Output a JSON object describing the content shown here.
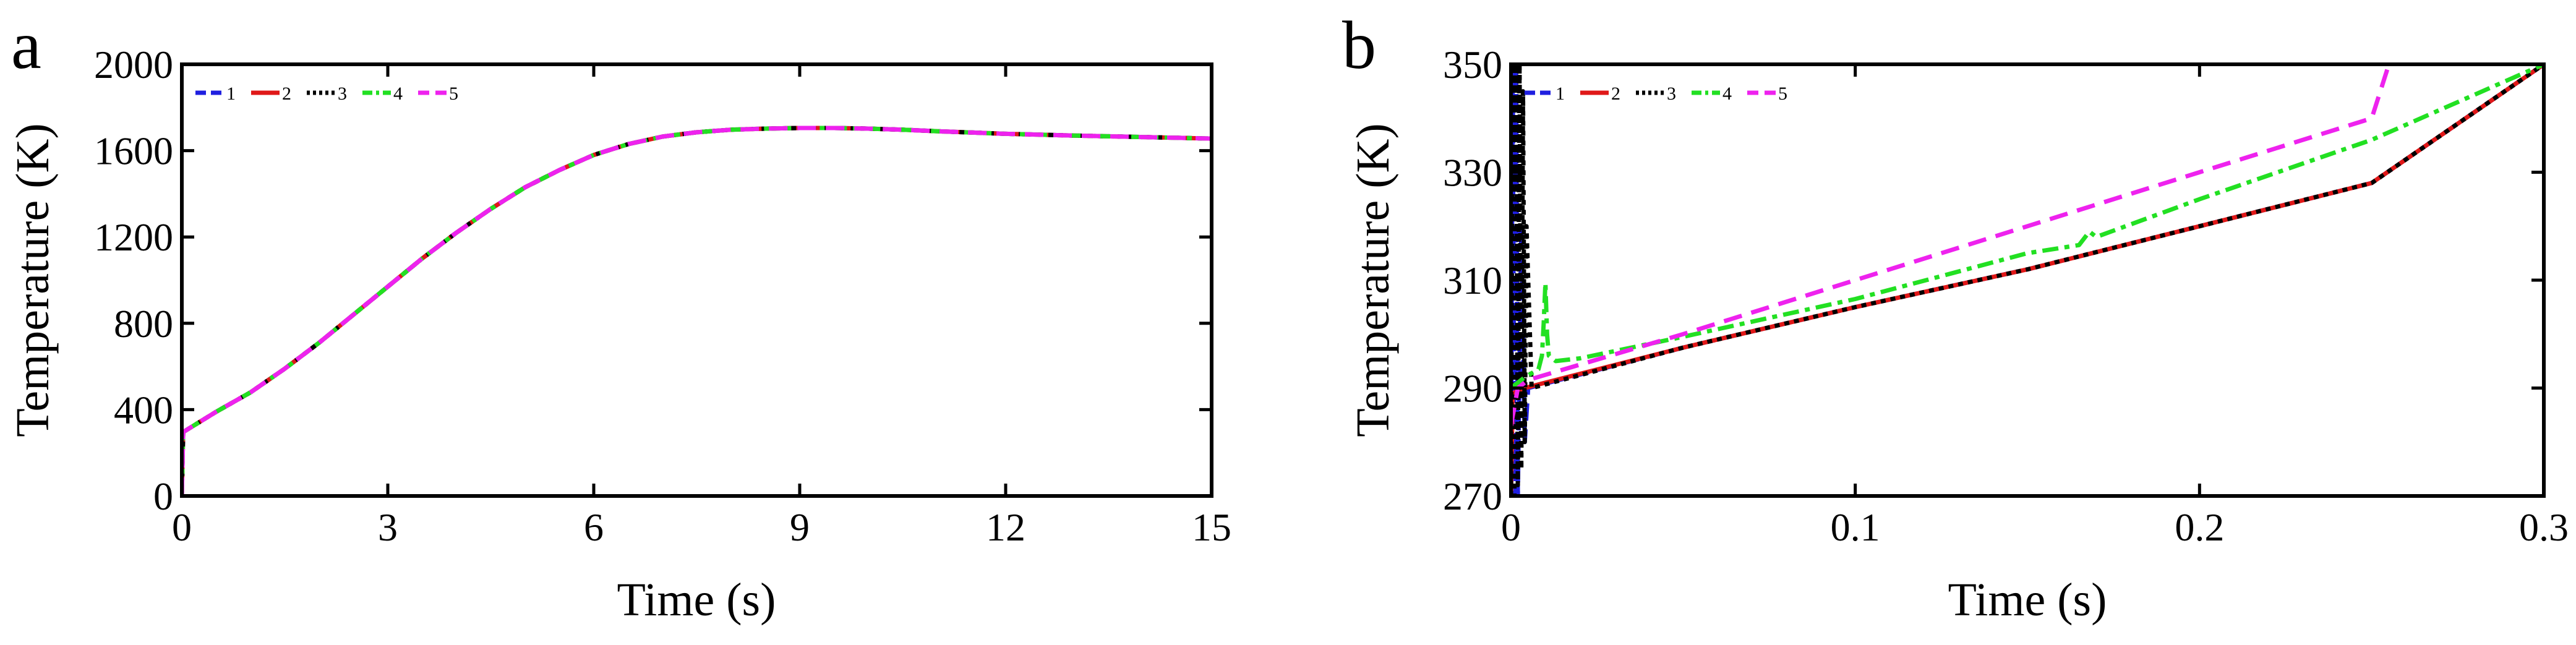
{
  "panels": [
    {
      "letter": "a"
    },
    {
      "letter": "b"
    }
  ],
  "legend_order": [
    "1",
    "2",
    "3",
    "4",
    "5"
  ],
  "series_styles": {
    "1": {
      "color": "#1f1fe0",
      "dash": "28,14"
    },
    "2": {
      "color": "#e01818",
      "dash": ""
    },
    "3": {
      "color": "#000000",
      "dash": "8,8"
    },
    "4": {
      "color": "#22e022",
      "dash": "26,10,8,10"
    },
    "5": {
      "color": "#ee22ee",
      "dash": "30,16"
    }
  },
  "chart_data": [
    {
      "type": "line",
      "title": "",
      "xlabel": "Time (s)",
      "ylabel": "Temperature (K)",
      "xlim": [
        0,
        15
      ],
      "ylim": [
        0,
        2000
      ],
      "xticks": [
        0,
        3,
        6,
        9,
        12,
        15
      ],
      "yticks": [
        0,
        400,
        800,
        1200,
        1600,
        2000
      ],
      "grid": false,
      "legend": "top-left",
      "series": [
        {
          "name": "1",
          "x": [
            0,
            0.02,
            0.04,
            0.5,
            1,
            1.5,
            2,
            2.5,
            3,
            3.5,
            4,
            4.5,
            5,
            5.5,
            6,
            6.5,
            7,
            7.5,
            8,
            8.5,
            9,
            9.5,
            10,
            10.5,
            11,
            11.5,
            12,
            13,
            14,
            15
          ],
          "y": [
            0,
            300,
            300,
            390,
            480,
            590,
            710,
            840,
            970,
            1100,
            1220,
            1330,
            1430,
            1510,
            1580,
            1630,
            1665,
            1685,
            1697,
            1702,
            1705,
            1705,
            1702,
            1697,
            1690,
            1684,
            1678,
            1670,
            1663,
            1656
          ]
        },
        {
          "name": "2",
          "x": [
            0,
            0.02,
            0.04,
            0.5,
            1,
            1.5,
            2,
            2.5,
            3,
            3.5,
            4,
            4.5,
            5,
            5.5,
            6,
            6.5,
            7,
            7.5,
            8,
            8.5,
            9,
            9.5,
            10,
            10.5,
            11,
            11.5,
            12,
            13,
            14,
            15
          ],
          "y": [
            0,
            300,
            300,
            390,
            480,
            590,
            710,
            840,
            970,
            1100,
            1220,
            1330,
            1430,
            1510,
            1580,
            1630,
            1665,
            1685,
            1697,
            1702,
            1705,
            1705,
            1702,
            1697,
            1690,
            1684,
            1678,
            1670,
            1663,
            1656
          ]
        },
        {
          "name": "3",
          "x": [
            0,
            0.02,
            0.04,
            0.5,
            1,
            1.5,
            2,
            2.5,
            3,
            3.5,
            4,
            4.5,
            5,
            5.5,
            6,
            6.5,
            7,
            7.5,
            8,
            8.5,
            9,
            9.5,
            10,
            10.5,
            11,
            11.5,
            12,
            13,
            14,
            15
          ],
          "y": [
            0,
            300,
            300,
            390,
            480,
            590,
            710,
            840,
            970,
            1100,
            1220,
            1330,
            1430,
            1510,
            1580,
            1630,
            1665,
            1685,
            1697,
            1702,
            1705,
            1705,
            1702,
            1697,
            1690,
            1684,
            1678,
            1670,
            1663,
            1656
          ]
        },
        {
          "name": "4",
          "x": [
            0,
            0.02,
            0.04,
            0.5,
            1,
            1.5,
            2,
            2.5,
            3,
            3.5,
            4,
            4.5,
            5,
            5.5,
            6,
            6.5,
            7,
            7.5,
            8,
            8.5,
            9,
            9.5,
            10,
            10.5,
            11,
            11.5,
            12,
            13,
            14,
            15
          ],
          "y": [
            0,
            300,
            300,
            390,
            480,
            590,
            710,
            840,
            970,
            1100,
            1220,
            1330,
            1430,
            1510,
            1580,
            1630,
            1665,
            1685,
            1697,
            1702,
            1705,
            1705,
            1702,
            1697,
            1690,
            1684,
            1678,
            1670,
            1663,
            1656
          ]
        },
        {
          "name": "5",
          "x": [
            0,
            0.02,
            0.04,
            0.5,
            1,
            1.5,
            2,
            2.5,
            3,
            3.5,
            4,
            4.5,
            5,
            5.5,
            6,
            6.5,
            7,
            7.5,
            8,
            8.5,
            9,
            9.5,
            10,
            10.5,
            11,
            11.5,
            12,
            13,
            14,
            15
          ],
          "y": [
            0,
            300,
            300,
            390,
            480,
            590,
            710,
            840,
            970,
            1100,
            1220,
            1330,
            1430,
            1510,
            1580,
            1630,
            1665,
            1685,
            1697,
            1702,
            1705,
            1705,
            1702,
            1697,
            1690,
            1684,
            1678,
            1670,
            1663,
            1656
          ]
        }
      ]
    },
    {
      "type": "line",
      "title": "",
      "xlabel": "Time (s)",
      "ylabel": "Temperature (K)",
      "xlim": [
        0,
        0.3
      ],
      "ylim": [
        270,
        350
      ],
      "xticks": [
        0,
        0.1,
        0.2,
        0.3
      ],
      "xtick_labels": [
        "0",
        "0.1",
        "0.2",
        "0.3"
      ],
      "yticks": [
        270,
        290,
        310,
        330,
        350
      ],
      "grid": false,
      "legend": "top-left",
      "series": [
        {
          "name": "1",
          "x": [
            0,
            0.0005,
            0.001,
            0.0015,
            0.002,
            0.003,
            0.004,
            0.005,
            0.05,
            0.1,
            0.15,
            0.2,
            0.25,
            0.3
          ],
          "y": [
            270,
            350,
            270,
            350,
            270,
            320,
            280,
            290,
            297.5,
            305,
            312,
            320,
            328,
            350
          ]
        },
        {
          "name": "2",
          "x": [
            0,
            0.0005,
            0.002,
            0.004,
            0.01,
            0.05,
            0.1,
            0.15,
            0.2,
            0.25,
            0.3
          ],
          "y": [
            270,
            289,
            289.5,
            290,
            291,
            297.5,
            305,
            312,
            320,
            328,
            350
          ]
        },
        {
          "name": "3",
          "x": [
            0,
            0.0005,
            0.001,
            0.0015,
            0.002,
            0.0025,
            0.003,
            0.0035,
            0.004,
            0.0045,
            0.006,
            0.05,
            0.1,
            0.15,
            0.2,
            0.25,
            0.3
          ],
          "y": [
            270,
            350,
            270,
            350,
            272,
            350,
            275,
            345,
            280,
            320,
            290,
            297.5,
            305,
            312,
            320,
            328,
            350
          ]
        },
        {
          "name": "4",
          "x": [
            0,
            0.004,
            0.008,
            0.009,
            0.0095,
            0.01,
            0.0105,
            0.011,
            0.013,
            0.02,
            0.05,
            0.1,
            0.15,
            0.165,
            0.168,
            0.17,
            0.2,
            0.25,
            0.3
          ],
          "y": [
            290,
            292,
            293.5,
            296,
            302,
            309.5,
            300,
            296,
            295,
            295.5,
            299.5,
            306.5,
            315,
            316.5,
            319,
            318,
            325,
            336,
            350
          ]
        },
        {
          "name": "5",
          "x": [
            0,
            0.002,
            0.005,
            0.05,
            0.1,
            0.15,
            0.2,
            0.25,
            0.255
          ],
          "y": [
            283,
            290,
            291.5,
            300,
            310,
            320,
            330,
            340,
            350
          ]
        }
      ]
    }
  ]
}
